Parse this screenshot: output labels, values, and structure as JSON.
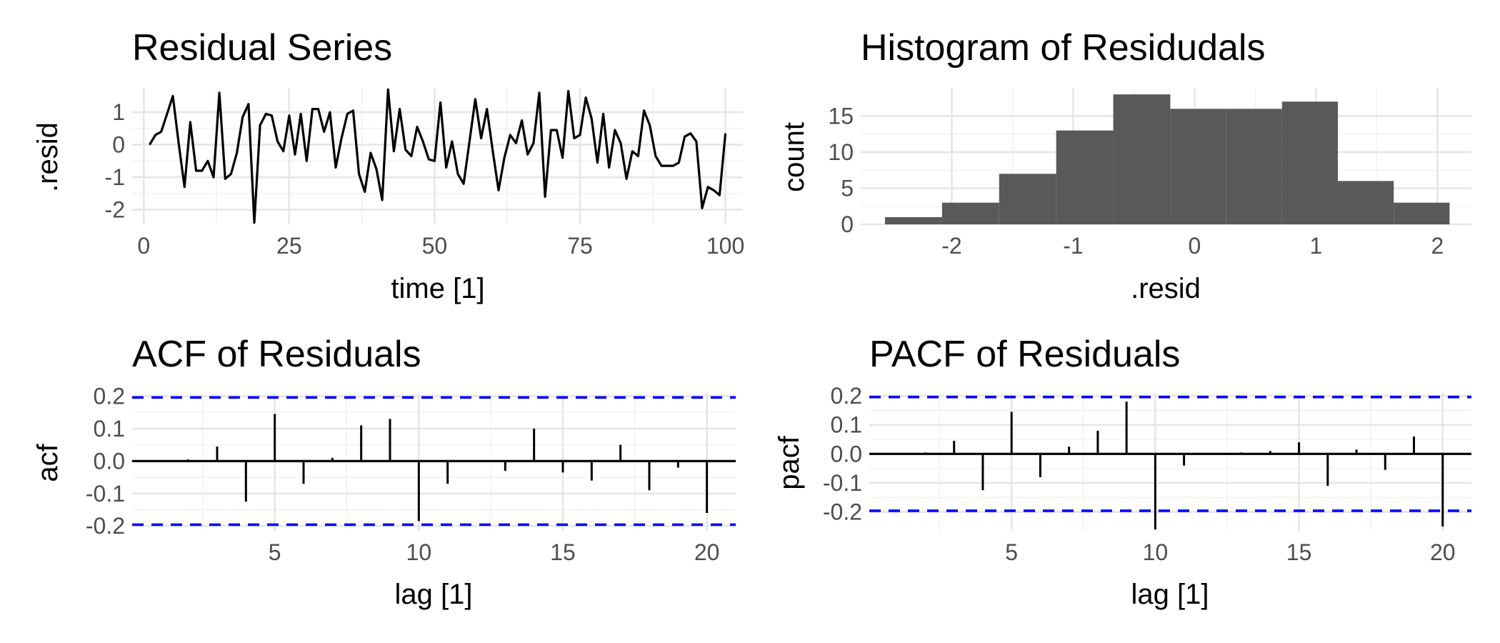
{
  "chart_data": [
    {
      "id": "resid_series",
      "type": "line",
      "title": "Residual Series",
      "xlabel": "time [1]",
      "ylabel": ".resid",
      "xlim": [
        -2,
        103
      ],
      "ylim": [
        -2.45,
        1.75
      ],
      "xticks": [
        0,
        25,
        50,
        75,
        100
      ],
      "yticks": [
        -2,
        -1,
        0,
        1
      ],
      "xtick_labels": [
        "0",
        "25",
        "50",
        "75",
        "100"
      ],
      "ytick_labels": [
        "-2",
        "-1",
        "0",
        "1"
      ],
      "grid": true,
      "x": [
        1,
        2,
        3,
        4,
        5,
        6,
        7,
        8,
        9,
        10,
        11,
        12,
        13,
        14,
        15,
        16,
        17,
        18,
        19,
        20,
        21,
        22,
        23,
        24,
        25,
        26,
        27,
        28,
        29,
        30,
        31,
        32,
        33,
        34,
        35,
        36,
        37,
        38,
        39,
        40,
        41,
        42,
        43,
        44,
        45,
        46,
        47,
        48,
        49,
        50,
        51,
        52,
        53,
        54,
        55,
        56,
        57,
        58,
        59,
        60,
        61,
        62,
        63,
        64,
        65,
        66,
        67,
        68,
        69,
        70,
        71,
        72,
        73,
        74,
        75,
        76,
        77,
        78,
        79,
        80,
        81,
        82,
        83,
        84,
        85,
        86,
        87,
        88,
        89,
        90,
        91,
        92,
        93,
        94,
        95,
        96,
        97,
        98,
        99,
        100
      ],
      "values": [
        0.0,
        0.3,
        0.4,
        0.95,
        1.5,
        0.05,
        -1.3,
        0.7,
        -0.8,
        -0.8,
        -0.5,
        -1.0,
        1.6,
        -1.05,
        -0.9,
        -0.25,
        0.85,
        1.25,
        -2.4,
        0.6,
        0.95,
        0.9,
        0.1,
        -0.2,
        0.9,
        -0.3,
        0.95,
        -0.5,
        1.1,
        1.1,
        0.4,
        1.0,
        -0.7,
        0.2,
        0.95,
        1.05,
        -0.9,
        -1.45,
        -0.25,
        -0.75,
        -1.7,
        1.7,
        -0.2,
        1.1,
        -0.15,
        -0.35,
        0.55,
        0.1,
        -0.45,
        -0.5,
        1.3,
        -0.7,
        0.1,
        -0.9,
        -1.2,
        0.1,
        1.4,
        0.2,
        1.1,
        -0.2,
        -1.4,
        -0.4,
        0.3,
        0.05,
        0.75,
        -0.3,
        0.05,
        1.6,
        -1.6,
        0.45,
        0.45,
        -0.4,
        1.65,
        0.2,
        0.3,
        1.45,
        0.8,
        -0.55,
        0.95,
        -0.7,
        0.45,
        0.05,
        -1.05,
        -0.2,
        -0.35,
        1.05,
        0.6,
        -0.35,
        -0.65,
        -0.65,
        -0.65,
        -0.55,
        0.25,
        0.35,
        0.1,
        -1.95,
        -1.3,
        -1.4,
        -1.55,
        0.35
      ]
    },
    {
      "id": "hist",
      "type": "bar",
      "title": "Histogram of Residudals",
      "xlabel": ".resid",
      "ylabel": "count",
      "xlim": [
        -2.75,
        2.28
      ],
      "ylim": [
        0,
        18.9
      ],
      "xticks": [
        -2,
        -1,
        0,
        1,
        2
      ],
      "yticks": [
        0,
        5,
        10,
        15
      ],
      "xtick_labels": [
        "-2",
        "-1",
        "0",
        "1",
        "2"
      ],
      "ytick_labels": [
        "0",
        "5",
        "10",
        "15"
      ],
      "grid": true,
      "bin_edges": [
        -2.55,
        -2.08,
        -1.61,
        -1.14,
        -0.67,
        -0.2,
        0.26,
        0.72,
        1.18,
        1.64,
        2.1
      ],
      "values": [
        1,
        3,
        7,
        13,
        18,
        16,
        16,
        17,
        6,
        3
      ],
      "color": "#595959"
    },
    {
      "id": "acf",
      "type": "bar",
      "title": "ACF of Residuals",
      "xlabel": "lag [1]",
      "ylabel": "acf",
      "xlim": [
        0.05,
        21.0
      ],
      "ylim": [
        -0.215,
        0.21
      ],
      "xticks": [
        5,
        10,
        15,
        20
      ],
      "yticks": [
        -0.2,
        -0.1,
        0.0,
        0.1,
        0.2
      ],
      "xtick_labels": [
        "5",
        "10",
        "15",
        "20"
      ],
      "ytick_labels": [
        "-0.2",
        "-0.1",
        "0.0",
        "0.1",
        "0.2"
      ],
      "grid": true,
      "lags": [
        1,
        2,
        3,
        4,
        5,
        6,
        7,
        8,
        9,
        10,
        11,
        12,
        13,
        14,
        15,
        16,
        17,
        18,
        19,
        20
      ],
      "values": [
        0.0,
        0.005,
        0.045,
        -0.125,
        0.145,
        -0.07,
        0.01,
        0.11,
        0.13,
        -0.185,
        -0.07,
        0.0,
        -0.03,
        0.1,
        -0.035,
        -0.06,
        0.05,
        -0.09,
        -0.02,
        -0.16
      ],
      "confidence_bound": 0.196,
      "bound_color": "#0000ff"
    },
    {
      "id": "pacf",
      "type": "bar",
      "title": "PACF of Residuals",
      "xlabel": "lag [1]",
      "ylabel": "pacf",
      "xlim": [
        0.05,
        21.0
      ],
      "ylim": [
        -0.265,
        0.21
      ],
      "xticks": [
        5,
        10,
        15,
        20
      ],
      "yticks": [
        -0.2,
        -0.1,
        0.0,
        0.1,
        0.2
      ],
      "xtick_labels": [
        "5",
        "10",
        "15",
        "20"
      ],
      "ytick_labels": [
        "-0.2",
        "-0.1",
        "0.0",
        "0.1",
        "0.2"
      ],
      "grid": true,
      "lags": [
        1,
        2,
        3,
        4,
        5,
        6,
        7,
        8,
        9,
        10,
        11,
        12,
        13,
        14,
        15,
        16,
        17,
        18,
        19,
        20
      ],
      "values": [
        0.0,
        0.005,
        0.045,
        -0.125,
        0.145,
        -0.08,
        0.025,
        0.08,
        0.18,
        -0.26,
        -0.04,
        0.0,
        0.005,
        0.01,
        0.04,
        -0.11,
        0.015,
        -0.055,
        0.06,
        -0.25
      ],
      "confidence_bound": 0.196,
      "bound_color": "#0000ff"
    }
  ]
}
